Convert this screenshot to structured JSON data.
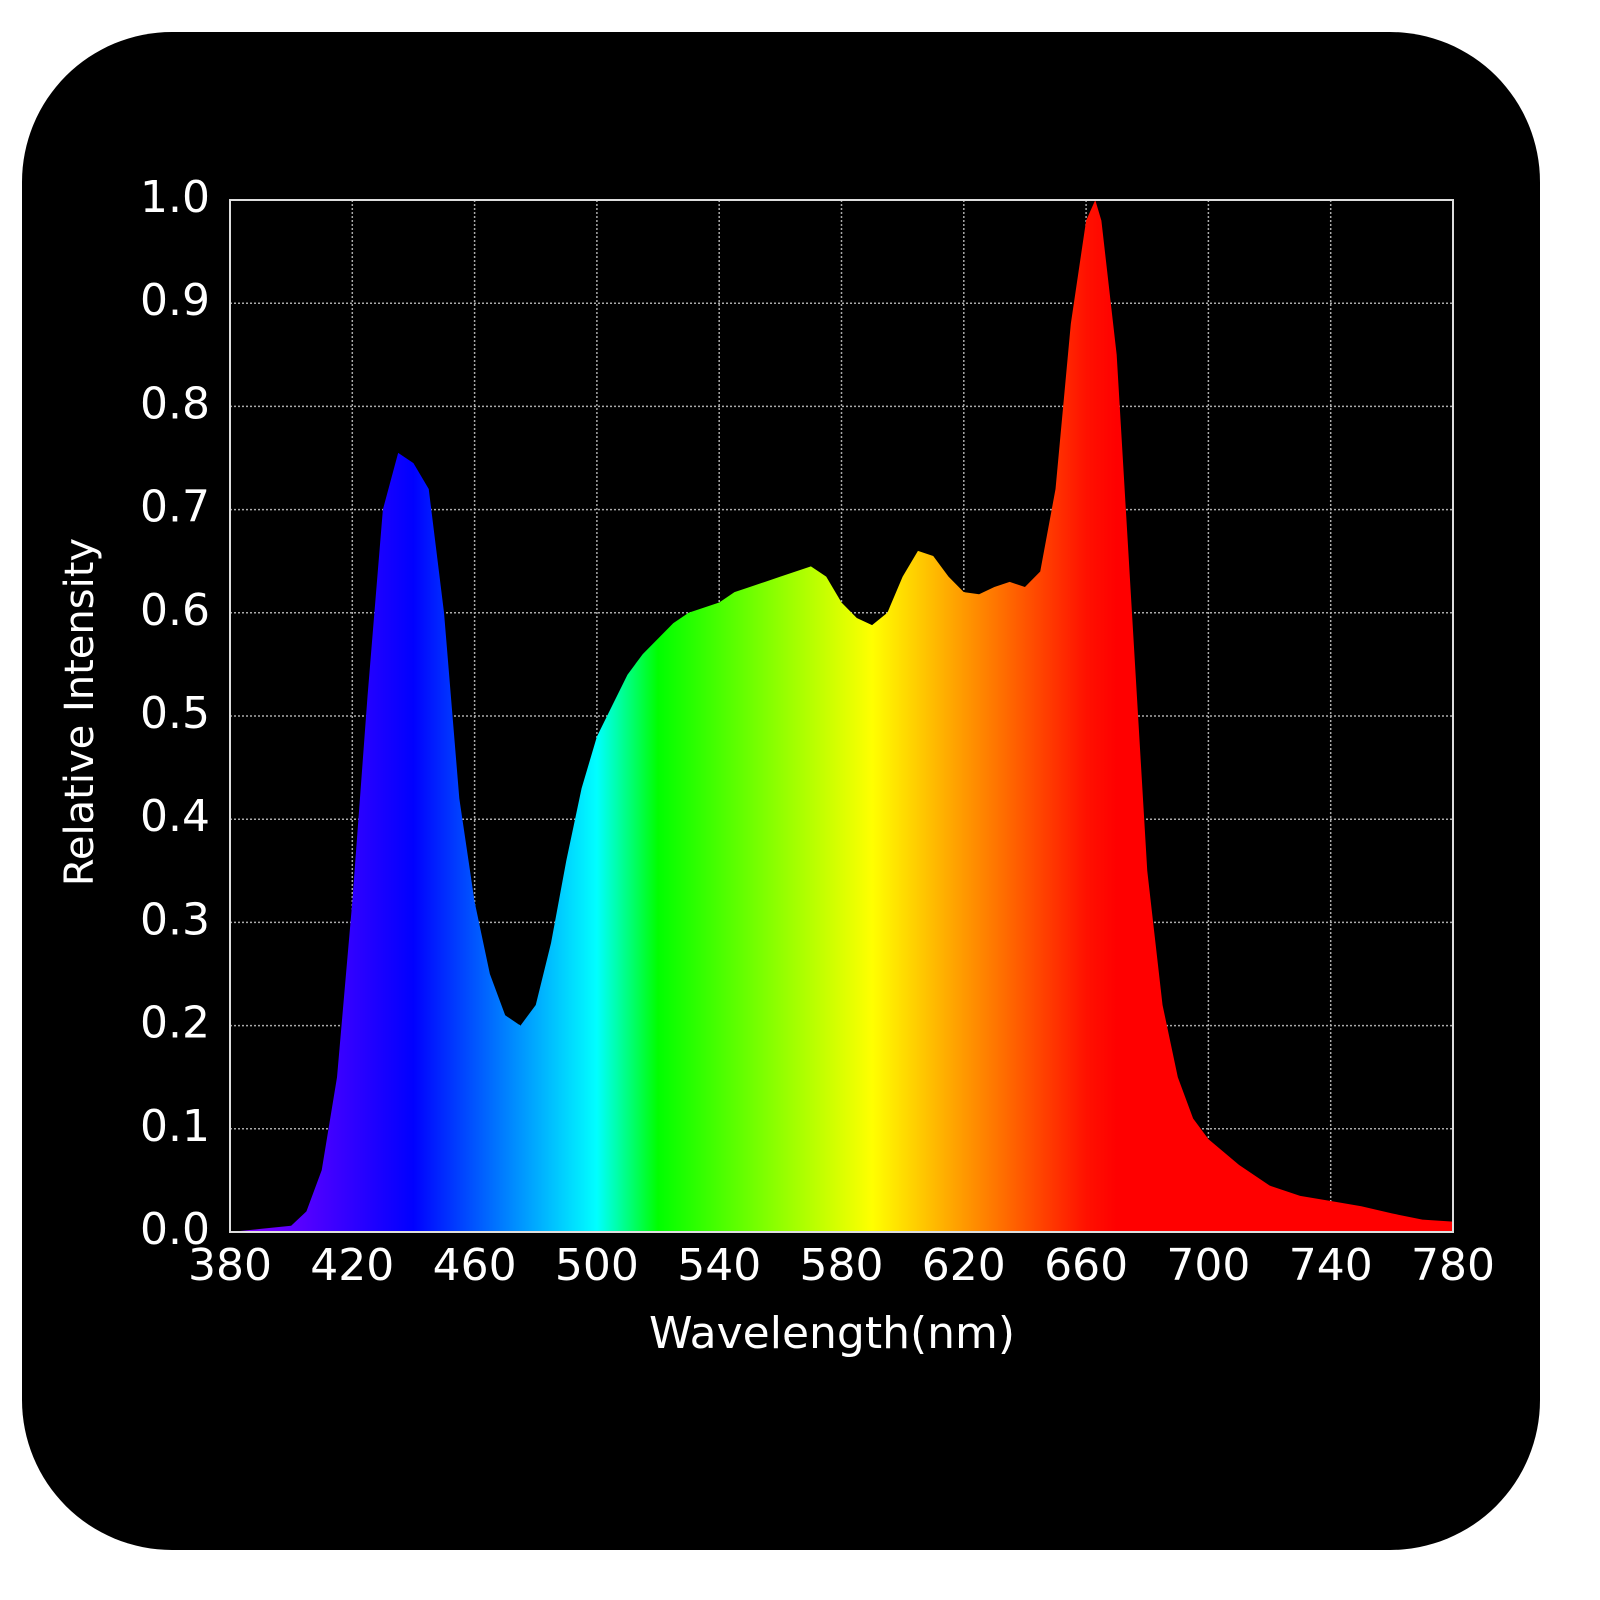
{
  "chart_data": {
    "type": "area",
    "xlabel": "Wavelength(nm)",
    "ylabel": "Relative Intensity",
    "x": [
      380,
      390,
      400,
      405,
      410,
      415,
      420,
      425,
      430,
      435,
      440,
      445,
      450,
      455,
      460,
      465,
      470,
      475,
      480,
      485,
      490,
      495,
      500,
      505,
      510,
      515,
      520,
      525,
      530,
      535,
      540,
      545,
      550,
      555,
      560,
      565,
      570,
      575,
      580,
      585,
      590,
      595,
      600,
      605,
      610,
      615,
      620,
      625,
      630,
      635,
      640,
      645,
      650,
      655,
      660,
      663,
      665,
      670,
      675,
      680,
      685,
      690,
      695,
      700,
      710,
      720,
      730,
      740,
      750,
      760,
      770,
      780
    ],
    "values": [
      0,
      0.003,
      0.006,
      0.02,
      0.06,
      0.15,
      0.32,
      0.52,
      0.7,
      0.755,
      0.745,
      0.72,
      0.6,
      0.42,
      0.32,
      0.25,
      0.21,
      0.2,
      0.22,
      0.28,
      0.36,
      0.43,
      0.48,
      0.51,
      0.54,
      0.56,
      0.575,
      0.59,
      0.6,
      0.605,
      0.61,
      0.62,
      0.625,
      0.63,
      0.635,
      0.64,
      0.645,
      0.635,
      0.61,
      0.595,
      0.588,
      0.6,
      0.635,
      0.66,
      0.655,
      0.635,
      0.62,
      0.618,
      0.625,
      0.63,
      0.625,
      0.64,
      0.72,
      0.88,
      0.98,
      1.0,
      0.98,
      0.85,
      0.6,
      0.35,
      0.22,
      0.15,
      0.11,
      0.09,
      0.065,
      0.045,
      0.035,
      0.03,
      0.025,
      0.018,
      0.012,
      0.01
    ],
    "xlim": [
      380,
      780
    ],
    "ylim": [
      0,
      1
    ],
    "xticks": [
      380,
      420,
      460,
      500,
      540,
      580,
      620,
      660,
      700,
      740,
      780
    ],
    "yticks": [
      {
        "value": 0,
        "label": "0.0"
      },
      0.1,
      0.2,
      0.3,
      0.4,
      0.5,
      0.6,
      0.7,
      0.8,
      0.9,
      {
        "value": 1,
        "label": "1.0"
      }
    ],
    "grid": true
  }
}
